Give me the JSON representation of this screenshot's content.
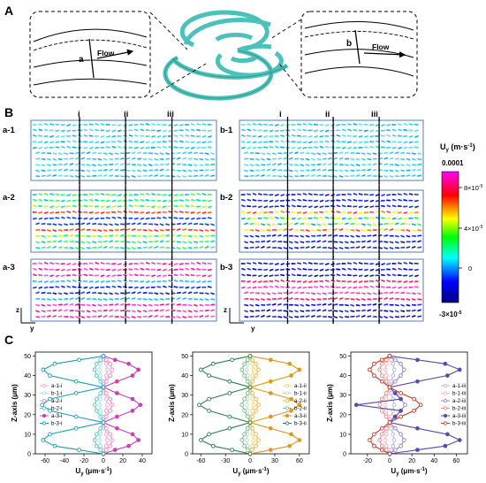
{
  "panels": {
    "a": {
      "label": "A"
    },
    "b": {
      "label": "B"
    },
    "c": {
      "label": "C"
    }
  },
  "panel_a": {
    "left_inset": {
      "section": "a",
      "flow": "Flow"
    },
    "right_inset": {
      "section": "b",
      "flow": "Flow"
    }
  },
  "panel_b": {
    "sub_labels_left": [
      "a-1",
      "a-2",
      "a-3"
    ],
    "sub_labels_right": [
      "b-1",
      "b-2",
      "b-3"
    ],
    "position_labels": [
      "i",
      "ii",
      "iii"
    ],
    "axis_z": "z",
    "axis_y": "y",
    "colorbar": {
      "title": "U",
      "title_sub": "y",
      "title_unit": "(m·s",
      "title_unit_sup": "-1",
      "title_unit_close": ")",
      "max_label": "0.0001",
      "tick_labels": [
        "8×10",
        "4×10",
        "0",
        "-3×10"
      ],
      "tick_exponent": "-5",
      "colors": [
        "#ff00ff",
        "#ff0000",
        "#ffff00",
        "#00ff00",
        "#00ffff",
        "#0000ff",
        "#000080"
      ]
    }
  },
  "chart_data": [
    {
      "type": "line",
      "xlabel": "Uy (μm·s-1)",
      "ylabel": "Z-axis (μm)",
      "xlim": [
        -70,
        50
      ],
      "ylim": [
        0,
        52
      ],
      "xticks": [
        "-60",
        "-40",
        "-20",
        "0",
        "20",
        "40"
      ],
      "yticks": [
        "0",
        "10",
        "20",
        "30",
        "40",
        "50"
      ],
      "series": [
        {
          "name": "a-1-i",
          "color": "#f4a6d2",
          "marker": "open-circle",
          "x": [
            0,
            1.5,
            3,
            4,
            3,
            1.5,
            0,
            1.5,
            3,
            4,
            3,
            1.5,
            0,
            1.5,
            3,
            4,
            3,
            1.5,
            0
          ],
          "y": [
            0,
            2,
            4,
            7,
            10,
            13,
            16,
            19,
            22,
            25,
            28,
            31,
            34,
            37,
            40,
            43,
            46,
            48,
            50
          ]
        },
        {
          "name": "b-1-i",
          "color": "#a7ddd8",
          "marker": "open-circle",
          "x": [
            0,
            -1.5,
            -3,
            -4,
            -3,
            -1.5,
            0,
            -1.5,
            -3,
            -4,
            -3,
            -1.5,
            0,
            -1.5,
            -3,
            -4,
            -3,
            -1.5,
            0
          ],
          "y": [
            0,
            2,
            4,
            7,
            10,
            13,
            16,
            19,
            22,
            25,
            28,
            31,
            34,
            37,
            40,
            43,
            46,
            48,
            50
          ]
        },
        {
          "name": "a-2-i",
          "color": "#e88fc8",
          "marker": "open-circle",
          "x": [
            0,
            3,
            7,
            9,
            7,
            3,
            0,
            3,
            7,
            9,
            7,
            3,
            0,
            3,
            7,
            9,
            7,
            3,
            0
          ],
          "y": [
            0,
            2,
            4,
            7,
            10,
            13,
            16,
            19,
            22,
            25,
            28,
            31,
            34,
            37,
            40,
            43,
            46,
            48,
            50
          ]
        },
        {
          "name": "b-2-i",
          "color": "#5ec3c8",
          "marker": "open-circle",
          "x": [
            0,
            -3,
            -7,
            -9,
            -7,
            -3,
            0,
            -3,
            -7,
            -9,
            -7,
            -3,
            0,
            -3,
            -7,
            -9,
            -7,
            -3,
            0
          ],
          "y": [
            0,
            2,
            4,
            7,
            10,
            13,
            16,
            19,
            22,
            25,
            28,
            31,
            34,
            37,
            40,
            43,
            46,
            48,
            50
          ]
        },
        {
          "name": "a-3-i",
          "color": "#cc3fb0",
          "marker": "filled-circle",
          "x": [
            0,
            12,
            26,
            36,
            30,
            14,
            0,
            14,
            30,
            38,
            30,
            14,
            0,
            14,
            30,
            36,
            26,
            12,
            0
          ],
          "y": [
            0,
            2,
            4,
            7,
            10,
            13,
            16,
            19,
            22,
            25,
            28,
            31,
            34,
            37,
            40,
            43,
            46,
            48,
            50
          ]
        },
        {
          "name": "b-3-i",
          "color": "#1f9db3",
          "marker": "open-circle",
          "x": [
            0,
            -25,
            -50,
            -62,
            -55,
            -28,
            0,
            -28,
            -55,
            -63,
            -55,
            -28,
            0,
            -28,
            -55,
            -62,
            -50,
            -25,
            0
          ],
          "y": [
            0,
            2,
            4,
            7,
            10,
            13,
            16,
            19,
            22,
            25,
            28,
            31,
            34,
            37,
            40,
            43,
            46,
            48,
            50
          ]
        }
      ]
    },
    {
      "type": "line",
      "xlabel": "Uy (μm·s-1)",
      "ylabel": "Z-axis (μm)",
      "xlim": [
        -70,
        72
      ],
      "ylim": [
        0,
        52
      ],
      "xticks": [
        "-60",
        "-30",
        "0",
        "30",
        "60"
      ],
      "yticks": [
        "0",
        "10",
        "20",
        "30",
        "40",
        "50"
      ],
      "series": [
        {
          "name": "a-1-ii",
          "color": "#f7d27a",
          "marker": "open-circle",
          "x": [
            0,
            1.5,
            3,
            4,
            3,
            1.5,
            0,
            1.5,
            3,
            4,
            3,
            1.5,
            0,
            1.5,
            3,
            4,
            3,
            1.5,
            0
          ],
          "y": [
            0,
            2,
            4,
            7,
            10,
            13,
            16,
            19,
            22,
            25,
            28,
            31,
            34,
            37,
            40,
            43,
            46,
            48,
            50
          ]
        },
        {
          "name": "b-1-ii",
          "color": "#b9dcc4",
          "marker": "open-circle",
          "x": [
            0,
            -1.5,
            -3,
            -4,
            -3,
            -1.5,
            0,
            -1.5,
            -3,
            -4,
            -3,
            -1.5,
            0,
            -1.5,
            -3,
            -4,
            -3,
            -1.5,
            0
          ],
          "y": [
            0,
            2,
            4,
            7,
            10,
            13,
            16,
            19,
            22,
            25,
            28,
            31,
            34,
            37,
            40,
            43,
            46,
            48,
            50
          ]
        },
        {
          "name": "a-2-ii",
          "color": "#efb84a",
          "marker": "open-circle",
          "x": [
            0,
            3,
            7,
            10,
            7,
            3,
            0,
            3,
            7,
            10,
            7,
            3,
            0,
            3,
            7,
            10,
            7,
            3,
            0
          ],
          "y": [
            0,
            2,
            4,
            7,
            10,
            13,
            16,
            19,
            22,
            25,
            28,
            31,
            34,
            37,
            40,
            43,
            46,
            48,
            50
          ]
        },
        {
          "name": "b-2-ii",
          "color": "#7cb98f",
          "marker": "open-circle",
          "x": [
            0,
            -3,
            -7,
            -10,
            -7,
            -3,
            0,
            -3,
            -7,
            -10,
            -7,
            -3,
            0,
            -3,
            -7,
            -10,
            -7,
            -3,
            0
          ],
          "y": [
            0,
            2,
            4,
            7,
            10,
            13,
            16,
            19,
            22,
            25,
            28,
            31,
            34,
            37,
            40,
            43,
            46,
            48,
            50
          ]
        },
        {
          "name": "a-3-ii",
          "color": "#d99a1e",
          "marker": "filled-circle",
          "x": [
            0,
            25,
            48,
            60,
            50,
            25,
            0,
            25,
            50,
            60,
            50,
            25,
            0,
            25,
            50,
            60,
            48,
            25,
            0
          ],
          "y": [
            0,
            2,
            4,
            7,
            10,
            13,
            16,
            19,
            22,
            25,
            28,
            31,
            34,
            37,
            40,
            43,
            46,
            48,
            50
          ]
        },
        {
          "name": "b-3-ii",
          "color": "#2e7d55",
          "marker": "open-circle",
          "x": [
            0,
            -22,
            -45,
            -60,
            -50,
            -25,
            0,
            -25,
            -50,
            -62,
            -50,
            -25,
            0,
            -25,
            -50,
            -60,
            -45,
            -22,
            0
          ],
          "y": [
            0,
            2,
            4,
            7,
            10,
            13,
            16,
            19,
            22,
            25,
            28,
            31,
            34,
            37,
            40,
            43,
            46,
            48,
            50
          ]
        }
      ]
    },
    {
      "type": "line",
      "xlabel": "Uy (μm·s-1)",
      "ylabel": "Z-axis (μm)",
      "xlim": [
        -35,
        70
      ],
      "ylim": [
        0,
        52
      ],
      "xticks": [
        "-20",
        "0",
        "20",
        "40",
        "60"
      ],
      "yticks": [
        "0",
        "10",
        "20",
        "30",
        "40",
        "50"
      ],
      "series": [
        {
          "name": "a-1-iii",
          "color": "#b9b3e0",
          "marker": "open-circle",
          "x": [
            0,
            1.5,
            3,
            4,
            3,
            1.5,
            0,
            1.5,
            3,
            4,
            3,
            1.5,
            0,
            1.5,
            3,
            4,
            3,
            1.5,
            0
          ],
          "y": [
            0,
            2,
            4,
            7,
            10,
            13,
            16,
            19,
            22,
            25,
            28,
            31,
            34,
            37,
            40,
            43,
            46,
            48,
            50
          ]
        },
        {
          "name": "b-1-iii",
          "color": "#f2b5b5",
          "marker": "open-circle",
          "x": [
            0,
            -1.5,
            -3,
            -4,
            -3,
            -1.5,
            0,
            -1.5,
            -3,
            -4,
            -3,
            -1.5,
            0,
            -1.5,
            -3,
            -4,
            -3,
            -1.5,
            0
          ],
          "y": [
            0,
            2,
            4,
            7,
            10,
            13,
            16,
            19,
            22,
            25,
            28,
            31,
            34,
            37,
            40,
            43,
            46,
            48,
            50
          ]
        },
        {
          "name": "a-2-iii",
          "color": "#8f84cf",
          "marker": "open-circle",
          "x": [
            0,
            5,
            10,
            13,
            10,
            5,
            0,
            5,
            10,
            14,
            10,
            5,
            0,
            5,
            10,
            13,
            10,
            5,
            0
          ],
          "y": [
            0,
            2,
            4,
            7,
            10,
            13,
            16,
            19,
            22,
            25,
            28,
            31,
            34,
            37,
            40,
            43,
            46,
            48,
            50
          ]
        },
        {
          "name": "b-2-iii",
          "color": "#e58a8a",
          "marker": "open-circle",
          "x": [
            0,
            -3,
            -7,
            -9,
            -7,
            -3,
            0,
            -3,
            -7,
            -9,
            -7,
            -3,
            0,
            -3,
            -7,
            -9,
            -7,
            -3,
            0
          ],
          "y": [
            0,
            2,
            4,
            7,
            10,
            13,
            16,
            19,
            22,
            25,
            28,
            31,
            34,
            37,
            40,
            43,
            46,
            48,
            50
          ]
        },
        {
          "name": "a-3-iii",
          "color": "#5a4aa8",
          "marker": "filled-circle",
          "x": [
            0,
            25,
            50,
            63,
            52,
            25,
            0,
            5,
            10,
            -30,
            10,
            5,
            0,
            25,
            52,
            63,
            50,
            25,
            0
          ],
          "y": [
            0,
            2,
            4,
            7,
            10,
            13,
            16,
            19,
            22,
            25,
            28,
            31,
            34,
            37,
            40,
            43,
            46,
            48,
            50
          ]
        },
        {
          "name": "b-3-iii",
          "color": "#c0392b",
          "marker": "open-circle",
          "x": [
            0,
            -7,
            -14,
            -18,
            -14,
            -7,
            0,
            10,
            22,
            28,
            22,
            10,
            0,
            -7,
            -14,
            -18,
            -14,
            -7,
            0
          ],
          "y": [
            0,
            2,
            4,
            7,
            10,
            13,
            16,
            19,
            22,
            25,
            28,
            31,
            34,
            37,
            40,
            43,
            46,
            48,
            50
          ]
        }
      ]
    }
  ]
}
